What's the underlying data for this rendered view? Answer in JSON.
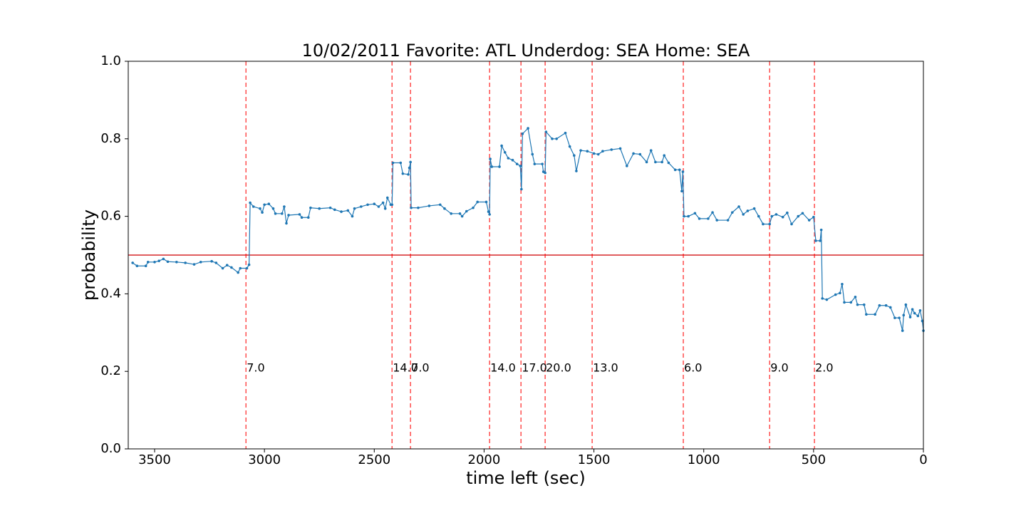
{
  "chart_data": {
    "type": "line",
    "title": "10/02/2011 Favorite: ATL Underdog: SEA Home: SEA",
    "x_label": "time left (sec)",
    "y_label": "probability",
    "x": [
      3600,
      3580,
      3540,
      3530,
      3500,
      3480,
      3460,
      3440,
      3400,
      3360,
      3320,
      3290,
      3240,
      3220,
      3190,
      3170,
      3150,
      3120,
      3110,
      3080,
      3070,
      3065,
      3050,
      3020,
      3010,
      3000,
      2980,
      2960,
      2950,
      2920,
      2910,
      2900,
      2890,
      2840,
      2830,
      2800,
      2790,
      2750,
      2700,
      2680,
      2650,
      2620,
      2600,
      2590,
      2560,
      2530,
      2500,
      2480,
      2460,
      2450,
      2440,
      2425,
      2419,
      2415,
      2380,
      2370,
      2345,
      2340,
      2335,
      2332,
      2300,
      2250,
      2200,
      2180,
      2150,
      2110,
      2100,
      2080,
      2050,
      2030,
      1990,
      1980,
      1975,
      1972,
      1965,
      1930,
      1920,
      1905,
      1890,
      1870,
      1850,
      1835,
      1830,
      1825,
      1800,
      1780,
      1770,
      1735,
      1730,
      1722,
      1718,
      1690,
      1670,
      1630,
      1610,
      1590,
      1580,
      1560,
      1530,
      1500,
      1480,
      1460,
      1420,
      1380,
      1350,
      1320,
      1290,
      1260,
      1240,
      1220,
      1190,
      1180,
      1160,
      1130,
      1110,
      1100,
      1095,
      1090,
      1070,
      1040,
      1020,
      980,
      960,
      940,
      890,
      870,
      840,
      820,
      800,
      770,
      750,
      730,
      700,
      690,
      670,
      640,
      620,
      600,
      570,
      550,
      520,
      500,
      490,
      470,
      465,
      460,
      440,
      400,
      380,
      370,
      360,
      330,
      310,
      300,
      270,
      260,
      220,
      200,
      170,
      150,
      130,
      110,
      95,
      90,
      80,
      60,
      50,
      40,
      25,
      15,
      5,
      0
    ],
    "series": [
      {
        "name": "probability",
        "color": "#1f77b4",
        "values": [
          0.48,
          0.472,
          0.472,
          0.482,
          0.482,
          0.485,
          0.49,
          0.483,
          0.482,
          0.48,
          0.476,
          0.482,
          0.484,
          0.48,
          0.466,
          0.474,
          0.468,
          0.455,
          0.466,
          0.466,
          0.475,
          0.635,
          0.625,
          0.62,
          0.61,
          0.63,
          0.632,
          0.62,
          0.607,
          0.607,
          0.625,
          0.582,
          0.603,
          0.605,
          0.597,
          0.597,
          0.622,
          0.62,
          0.622,
          0.617,
          0.612,
          0.615,
          0.6,
          0.62,
          0.625,
          0.63,
          0.632,
          0.625,
          0.635,
          0.62,
          0.648,
          0.63,
          0.63,
          0.738,
          0.738,
          0.71,
          0.708,
          0.725,
          0.74,
          0.622,
          0.622,
          0.627,
          0.63,
          0.62,
          0.607,
          0.607,
          0.6,
          0.613,
          0.622,
          0.637,
          0.637,
          0.612,
          0.605,
          0.748,
          0.728,
          0.728,
          0.782,
          0.765,
          0.75,
          0.745,
          0.735,
          0.73,
          0.67,
          0.813,
          0.827,
          0.76,
          0.735,
          0.735,
          0.715,
          0.712,
          0.818,
          0.8,
          0.8,
          0.815,
          0.78,
          0.757,
          0.717,
          0.77,
          0.768,
          0.762,
          0.76,
          0.768,
          0.772,
          0.775,
          0.73,
          0.762,
          0.76,
          0.74,
          0.77,
          0.74,
          0.74,
          0.757,
          0.738,
          0.72,
          0.72,
          0.665,
          0.715,
          0.6,
          0.6,
          0.608,
          0.594,
          0.594,
          0.61,
          0.59,
          0.59,
          0.61,
          0.625,
          0.605,
          0.614,
          0.62,
          0.6,
          0.58,
          0.58,
          0.6,
          0.605,
          0.598,
          0.609,
          0.58,
          0.6,
          0.608,
          0.59,
          0.598,
          0.537,
          0.537,
          0.565,
          0.388,
          0.385,
          0.398,
          0.402,
          0.425,
          0.378,
          0.378,
          0.392,
          0.372,
          0.372,
          0.347,
          0.347,
          0.37,
          0.37,
          0.365,
          0.338,
          0.338,
          0.305,
          0.345,
          0.372,
          0.34,
          0.36,
          0.35,
          0.343,
          0.357,
          0.33,
          0.305
        ]
      }
    ],
    "hline": {
      "y": 0.5,
      "color": "#d62728"
    },
    "vlines": {
      "color": "#ff0000",
      "x": [
        3084,
        2419,
        2335,
        1975,
        1832,
        1722,
        1508,
        1093,
        700,
        496
      ]
    },
    "annotations": [
      {
        "x": 3084,
        "y": 0.2,
        "text": "7.0"
      },
      {
        "x": 2419,
        "y": 0.2,
        "text": "14.0"
      },
      {
        "x": 2335,
        "y": 0.2,
        "text": "7.0"
      },
      {
        "x": 1975,
        "y": 0.2,
        "text": "14.0"
      },
      {
        "x": 1832,
        "y": 0.2,
        "text": "17.0"
      },
      {
        "x": 1722,
        "y": 0.2,
        "text": "20.0"
      },
      {
        "x": 1508,
        "y": 0.2,
        "text": "13.0"
      },
      {
        "x": 1093,
        "y": 0.2,
        "text": "6.0"
      },
      {
        "x": 700,
        "y": 0.2,
        "text": "9.0"
      },
      {
        "x": 496,
        "y": 0.2,
        "text": "2.0"
      }
    ],
    "xlim": [
      3620,
      0
    ],
    "xticks": [
      3500,
      3000,
      2500,
      2000,
      1500,
      1000,
      500,
      0
    ],
    "ylim": [
      0,
      1
    ],
    "yticks": [
      {
        "value": 0,
        "label": "0.0"
      },
      {
        "value": 0.2,
        "label": "0.2"
      },
      {
        "value": 0.4,
        "label": "0.4"
      },
      {
        "value": 0.6,
        "label": "0.6"
      },
      {
        "value": 0.8,
        "label": "0.8"
      },
      {
        "value": 1,
        "label": "1.0"
      }
    ]
  }
}
